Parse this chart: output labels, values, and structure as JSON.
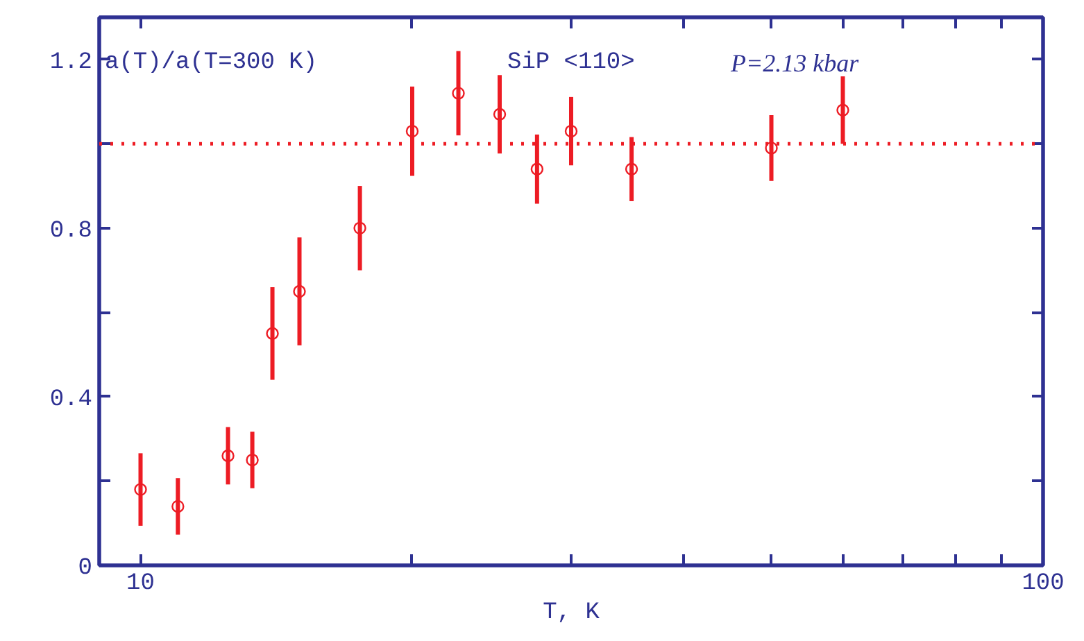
{
  "chart_data": {
    "type": "scatter",
    "ylabel": "a(T)/a(T=300 K)",
    "xlabel": "T, K",
    "annotations": [
      "SiP <110>",
      "P=2.13 kbar"
    ],
    "x": [
      10,
      11,
      12.5,
      13.3,
      14,
      15,
      17.5,
      20,
      22.5,
      25,
      27.5,
      30,
      35,
      50,
      60
    ],
    "series": [
      {
        "color": "#ed1c24",
        "values": [
          0.18,
          0.14,
          0.26,
          0.25,
          0.55,
          0.65,
          0.8,
          1.03,
          1.12,
          1.07,
          0.94,
          1.03,
          0.94,
          0.99,
          1.08
        ],
        "errors": [
          0.086,
          0.067,
          0.068,
          0.067,
          0.11,
          0.128,
          0.1,
          0.106,
          0.1,
          0.093,
          0.082,
          0.081,
          0.076,
          0.078,
          0.08
        ]
      }
    ],
    "marker": "circle",
    "log": "x",
    "xlim": [
      9,
      100
    ],
    "xticks": [
      10,
      {
        "value": 20,
        "label": null
      },
      {
        "value": 30,
        "label": null
      },
      {
        "value": 40,
        "label": null
      },
      {
        "value": 50,
        "label": null
      },
      {
        "value": 60,
        "label": null
      },
      {
        "value": 70,
        "label": null
      },
      {
        "value": 80,
        "label": null
      },
      {
        "value": 90,
        "label": null
      },
      100
    ],
    "ylim": [
      0,
      1.3
    ],
    "yticks": [
      0,
      {
        "value": 0.2,
        "label": null
      },
      0.4,
      {
        "value": 0.6,
        "label": null
      },
      0.8,
      {
        "value": 1.0,
        "label": null
      },
      1.2
    ],
    "ref_lines": [
      {
        "axis": "y",
        "value": 1.0,
        "color": "#ed1c24",
        "line_style": "dotted"
      }
    ],
    "grid": false
  }
}
